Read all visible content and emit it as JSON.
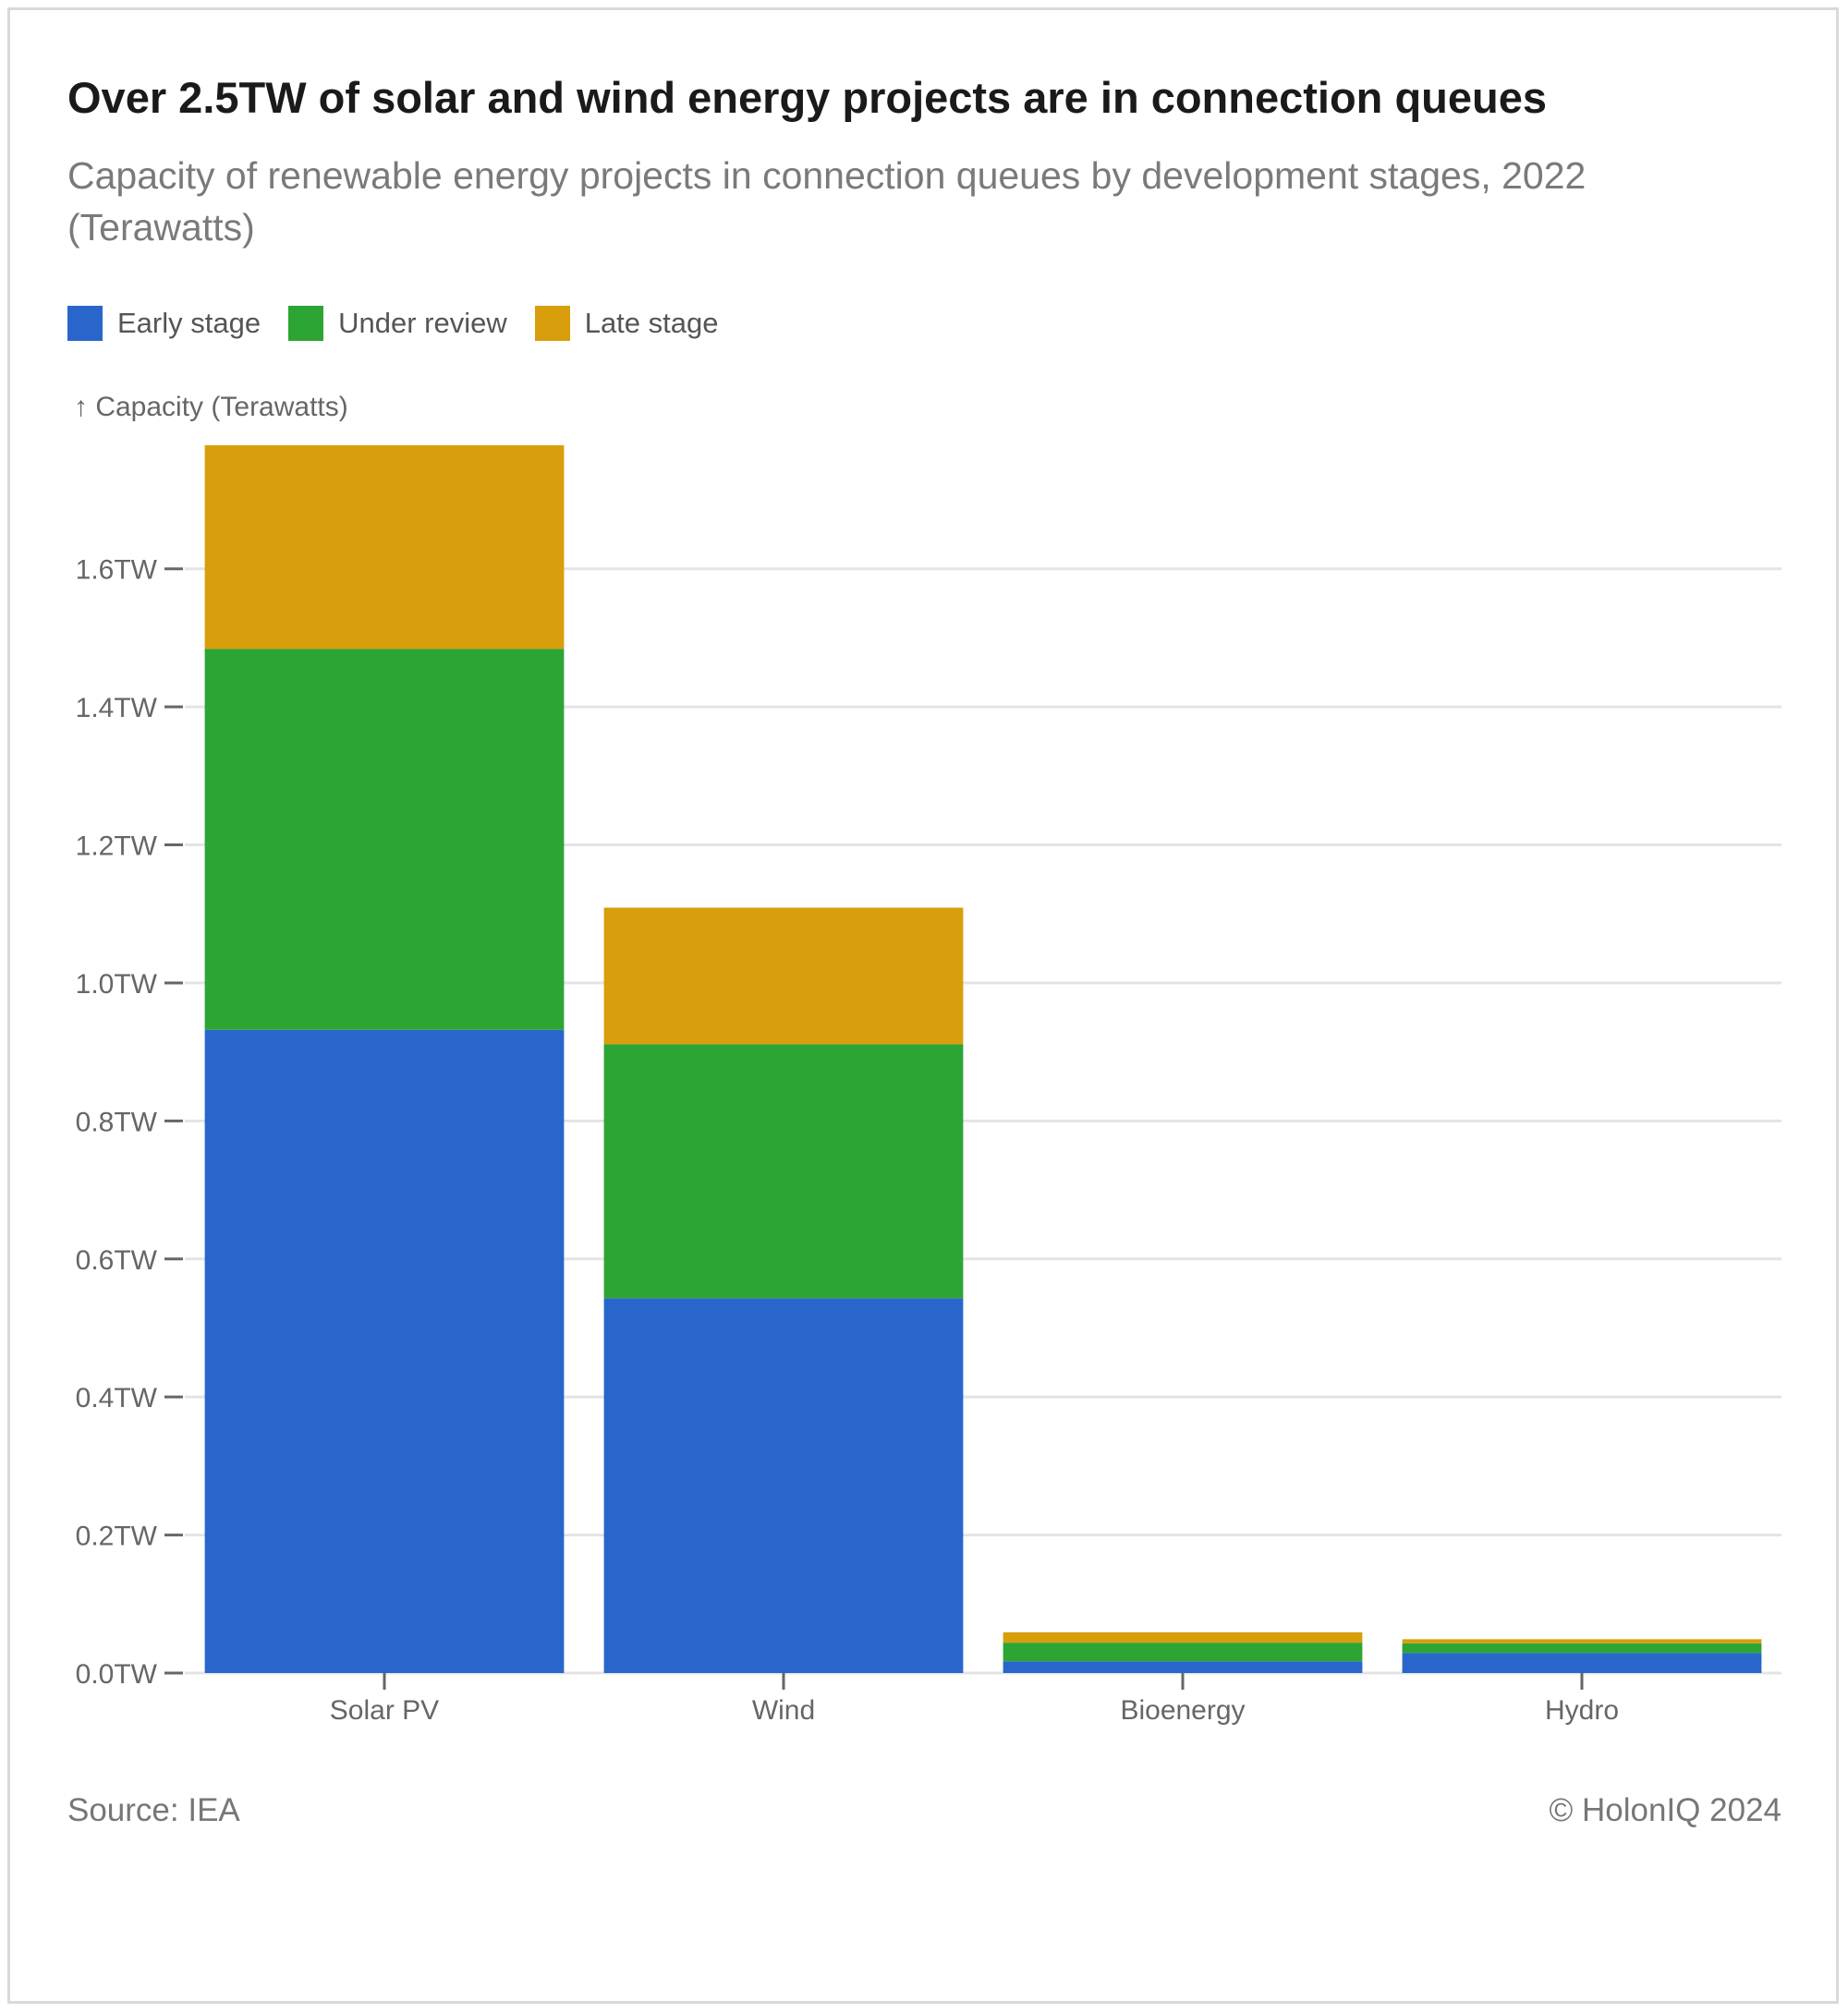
{
  "title": "Over 2.5TW of solar and wind energy projects are in connection queues",
  "subtitle": "Capacity of renewable energy projects in connection queues by development stages, 2022 (Terawatts)",
  "legend": [
    {
      "label": "Early stage",
      "color": "#2966cc"
    },
    {
      "label": "Under review",
      "color": "#2ca535"
    },
    {
      "label": "Late stage",
      "color": "#d89e0b"
    }
  ],
  "y_axis_title": "↑ Capacity (Terawatts)",
  "source": "Source: IEA",
  "copyright": "© HolonIQ 2024",
  "chart_data": {
    "type": "bar",
    "stacked": true,
    "categories": [
      "Solar PV",
      "Wind",
      "Bioenergy",
      "Hydro"
    ],
    "series": [
      {
        "name": "Early stage",
        "color": "#2966cc",
        "values": [
          0.932,
          0.543,
          0.017,
          0.029
        ]
      },
      {
        "name": "Under review",
        "color": "#2ca535",
        "values": [
          0.552,
          0.368,
          0.027,
          0.014
        ]
      },
      {
        "name": "Late stage",
        "color": "#d89e0b",
        "values": [
          0.295,
          0.198,
          0.015,
          0.006
        ]
      }
    ],
    "ylim": [
      0,
      1.779
    ],
    "yticks": [
      0.0,
      0.2,
      0.4,
      0.6,
      0.8,
      1.0,
      1.2,
      1.4,
      1.6
    ],
    "ytick_labels": [
      "0.0TW",
      "0.2TW",
      "0.4TW",
      "0.6TW",
      "0.8TW",
      "1.0TW",
      "1.2TW",
      "1.4TW",
      "1.6TW"
    ],
    "ylabel": "↑ Capacity (Terawatts)",
    "grid": true
  }
}
